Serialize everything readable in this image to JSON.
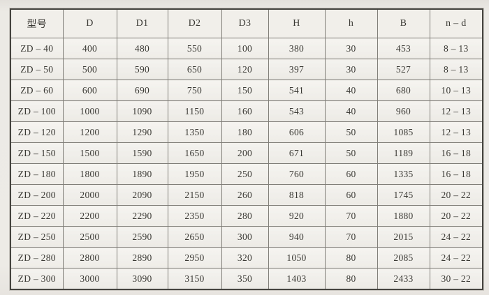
{
  "document": {
    "kind": "scanned-specification-table",
    "colors": {
      "paper_bg": "#eceae5",
      "cell_bg": "#f2f0eb",
      "outer_border": "#45443f",
      "inner_border": "#807e78",
      "text": "#3a3934"
    }
  },
  "table": {
    "headers": [
      "型号",
      "D",
      "D1",
      "D2",
      "D3",
      "H",
      "h",
      "B",
      "n – d"
    ],
    "rows": [
      [
        "ZD – 40",
        "400",
        "480",
        "550",
        "100",
        "380",
        "30",
        "453",
        "8 – 13"
      ],
      [
        "ZD – 50",
        "500",
        "590",
        "650",
        "120",
        "397",
        "30",
        "527",
        "8 – 13"
      ],
      [
        "ZD – 60",
        "600",
        "690",
        "750",
        "150",
        "541",
        "40",
        "680",
        "10 – 13"
      ],
      [
        "ZD – 100",
        "1000",
        "1090",
        "1150",
        "160",
        "543",
        "40",
        "960",
        "12 – 13"
      ],
      [
        "ZD – 120",
        "1200",
        "1290",
        "1350",
        "180",
        "606",
        "50",
        "1085",
        "12 – 13"
      ],
      [
        "ZD – 150",
        "1500",
        "1590",
        "1650",
        "200",
        "671",
        "50",
        "1189",
        "16 – 18"
      ],
      [
        "ZD – 180",
        "1800",
        "1890",
        "1950",
        "250",
        "760",
        "60",
        "1335",
        "16 – 18"
      ],
      [
        "ZD – 200",
        "2000",
        "2090",
        "2150",
        "260",
        "818",
        "60",
        "1745",
        "20 – 22"
      ],
      [
        "ZD – 220",
        "2200",
        "2290",
        "2350",
        "280",
        "920",
        "70",
        "1880",
        "20 – 22"
      ],
      [
        "ZD – 250",
        "2500",
        "2590",
        "2650",
        "300",
        "940",
        "70",
        "2015",
        "24 – 22"
      ],
      [
        "ZD – 280",
        "2800",
        "2890",
        "2950",
        "320",
        "1050",
        "80",
        "2085",
        "24 – 22"
      ],
      [
        "ZD – 300",
        "3000",
        "3090",
        "3150",
        "350",
        "1403",
        "80",
        "2433",
        "30 – 22"
      ]
    ]
  }
}
